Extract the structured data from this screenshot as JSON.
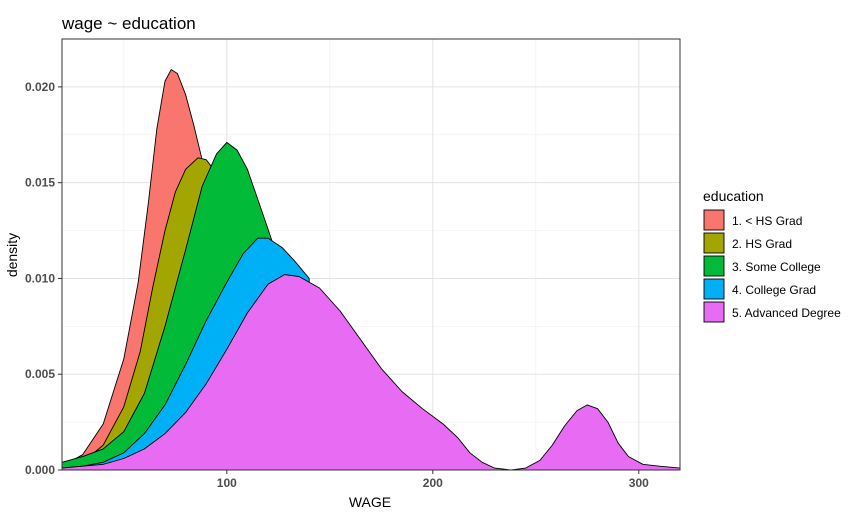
{
  "chart_data": {
    "type": "area",
    "title": "wage ~ education",
    "xlabel": "WAGE",
    "ylabel": "density",
    "xlim": [
      20,
      320
    ],
    "ylim": [
      0,
      0.0225
    ],
    "x_ticks": [
      100,
      200,
      300
    ],
    "y_ticks": [
      0.0,
      0.005,
      0.01,
      0.015,
      0.02
    ],
    "y_tick_labels": [
      "0.000",
      "0.005",
      "0.010",
      "0.015",
      "0.020"
    ],
    "grid": true,
    "legend_title": "education",
    "legend_position": "right",
    "series": [
      {
        "name": "1. < HS Grad",
        "color": "#F8766D",
        "points": [
          [
            20,
            0.0002
          ],
          [
            30,
            0.0008
          ],
          [
            40,
            0.0024
          ],
          [
            50,
            0.0058
          ],
          [
            57,
            0.0098
          ],
          [
            62,
            0.014
          ],
          [
            66,
            0.0178
          ],
          [
            70,
            0.0203
          ],
          [
            73,
            0.0209
          ],
          [
            76,
            0.0207
          ],
          [
            80,
            0.0196
          ],
          [
            84,
            0.018
          ],
          [
            88,
            0.0162
          ],
          [
            92,
            0.0135
          ],
          [
            97,
            0.0092
          ]
        ]
      },
      {
        "name": "2. HS Grad",
        "color": "#A3A500",
        "points": [
          [
            20,
            0.0001
          ],
          [
            30,
            0.0004
          ],
          [
            40,
            0.0013
          ],
          [
            50,
            0.0033
          ],
          [
            58,
            0.0062
          ],
          [
            64,
            0.0095
          ],
          [
            70,
            0.0125
          ],
          [
            75,
            0.0145
          ],
          [
            80,
            0.0157
          ],
          [
            86,
            0.0163
          ],
          [
            90,
            0.0162
          ],
          [
            95,
            0.0155
          ],
          [
            100,
            0.013
          ],
          [
            105,
            0.009
          ]
        ]
      },
      {
        "name": "3. Some College",
        "color": "#00BA38",
        "points": [
          [
            20,
            0.0004
          ],
          [
            30,
            0.0007
          ],
          [
            40,
            0.0011
          ],
          [
            50,
            0.002
          ],
          [
            60,
            0.004
          ],
          [
            70,
            0.0075
          ],
          [
            80,
            0.0115
          ],
          [
            88,
            0.0148
          ],
          [
            95,
            0.0165
          ],
          [
            100,
            0.0171
          ],
          [
            105,
            0.0167
          ],
          [
            110,
            0.0157
          ],
          [
            118,
            0.0132
          ],
          [
            125,
            0.011
          ],
          [
            130,
            0.009
          ]
        ]
      },
      {
        "name": "4. College Grad",
        "color": "#00B0F6",
        "points": [
          [
            20,
            0.0001
          ],
          [
            30,
            0.0002
          ],
          [
            40,
            0.0004
          ],
          [
            50,
            0.0009
          ],
          [
            60,
            0.0019
          ],
          [
            70,
            0.0034
          ],
          [
            80,
            0.0055
          ],
          [
            90,
            0.0078
          ],
          [
            100,
            0.0098
          ],
          [
            108,
            0.0113
          ],
          [
            115,
            0.0121
          ],
          [
            120,
            0.0121
          ],
          [
            127,
            0.0116
          ],
          [
            133,
            0.0109
          ],
          [
            140,
            0.01
          ]
        ]
      },
      {
        "name": "5. Advanced Degree",
        "color": "#E76BF3",
        "points": [
          [
            20,
            0.0001
          ],
          [
            30,
            0.0002
          ],
          [
            40,
            0.0003
          ],
          [
            50,
            0.0006
          ],
          [
            60,
            0.0011
          ],
          [
            70,
            0.0019
          ],
          [
            80,
            0.003
          ],
          [
            90,
            0.0045
          ],
          [
            100,
            0.0063
          ],
          [
            110,
            0.0082
          ],
          [
            120,
            0.0097
          ],
          [
            128,
            0.0102
          ],
          [
            135,
            0.0101
          ],
          [
            145,
            0.0095
          ],
          [
            155,
            0.0083
          ],
          [
            165,
            0.0068
          ],
          [
            175,
            0.0053
          ],
          [
            185,
            0.0041
          ],
          [
            195,
            0.0032
          ],
          [
            205,
            0.0024
          ],
          [
            212,
            0.0017
          ],
          [
            218,
            0.0009
          ],
          [
            224,
            0.0004
          ],
          [
            230,
            0.0001
          ],
          [
            238,
            0.0
          ],
          [
            245,
            0.0001
          ],
          [
            252,
            0.0005
          ],
          [
            258,
            0.0013
          ],
          [
            264,
            0.0023
          ],
          [
            270,
            0.0031
          ],
          [
            275,
            0.0034
          ],
          [
            280,
            0.0032
          ],
          [
            285,
            0.0025
          ],
          [
            290,
            0.0014
          ],
          [
            295,
            0.0007
          ],
          [
            302,
            0.0003
          ],
          [
            310,
            0.0002
          ],
          [
            320,
            0.0001
          ]
        ]
      }
    ]
  }
}
